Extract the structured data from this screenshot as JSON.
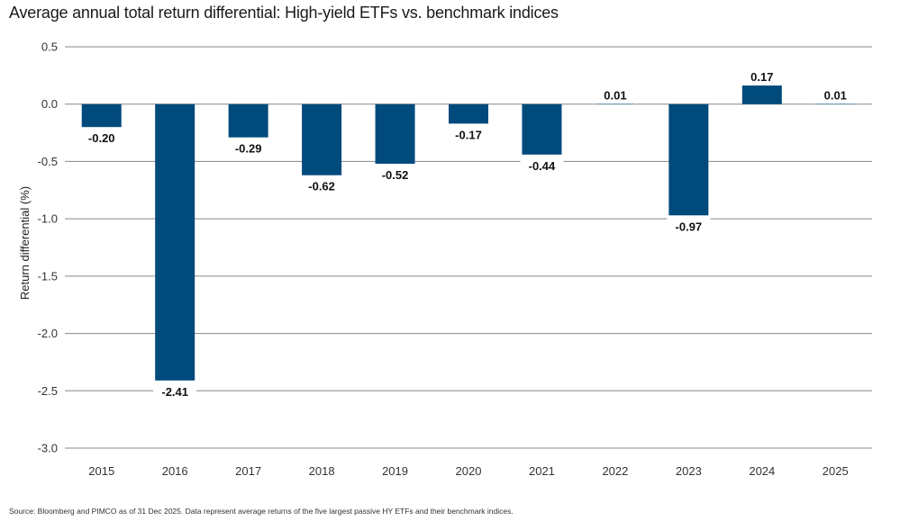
{
  "title": "Average annual total return differential: High-yield ETFs vs. benchmark indices",
  "source": "Source: Bloomberg and PIMCO as of 31 Dec 2025. Data represent average returns of the five largest passive HY ETFs and their benchmark indices.",
  "colors": {
    "bar": "#004a7c",
    "grid": "#888888"
  },
  "chart_data": {
    "type": "bar",
    "categories": [
      "2015",
      "2016",
      "2017",
      "2018",
      "2019",
      "2020",
      "2021",
      "2022",
      "2023",
      "2024",
      "2025"
    ],
    "values": [
      -0.2,
      -2.41,
      -0.29,
      -0.62,
      -0.52,
      -0.17,
      -0.44,
      0.01,
      -0.97,
      0.17,
      0.01
    ],
    "data_labels": [
      "-0.20",
      "-2.41",
      "-0.29",
      "-0.62",
      "-0.52",
      "-0.17",
      "-0.44",
      "0.01",
      "-0.97",
      "0.17",
      "0.01"
    ],
    "ylabel": "Return differential (%)",
    "ylim": [
      -3.0,
      0.5
    ],
    "yticks": [
      0.5,
      0.0,
      -0.5,
      -1.0,
      -1.5,
      -2.0,
      -2.5,
      -3.0
    ],
    "ytick_labels": [
      "0.5",
      "0.0",
      "-0.5",
      "-1.0",
      "-1.5",
      "-2.0",
      "-2.5",
      "-3.0"
    ],
    "grid": true,
    "legend": "none"
  }
}
